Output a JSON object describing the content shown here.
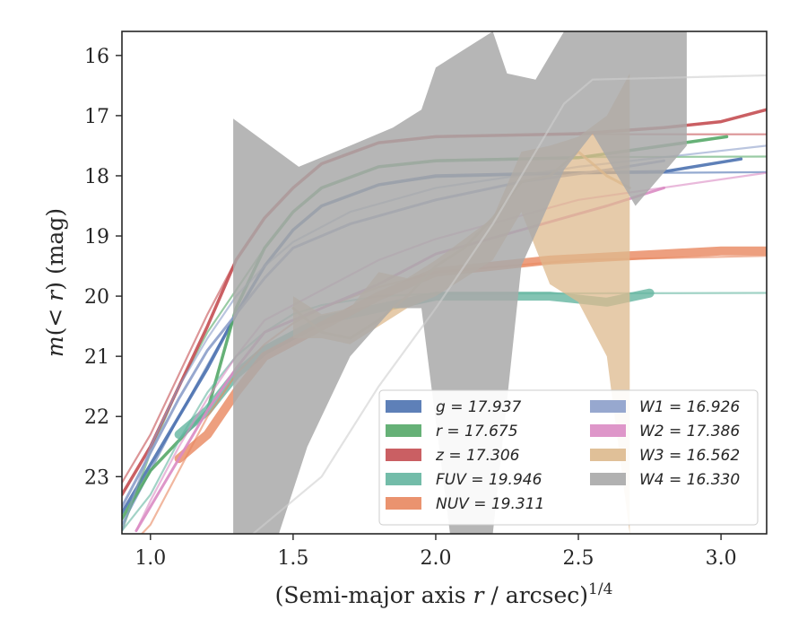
{
  "chart_data": {
    "type": "line",
    "xlabel": "(Semi-major axis r / arcsec)^1/4",
    "ylabel": "m(< r) (mag)",
    "xlim": [
      0.9,
      3.16
    ],
    "ylim": [
      23.95,
      15.6
    ],
    "y_inverted": true,
    "grid": false,
    "legend_position": "lower-right",
    "x_ticks": [
      "1.0",
      "1.5",
      "2.0",
      "2.5",
      "3.0"
    ],
    "x_tick_values": [
      1.0,
      1.5,
      2.0,
      2.5,
      3.0
    ],
    "y_ticks": [
      "16",
      "17",
      "18",
      "19",
      "20",
      "21",
      "22",
      "23"
    ],
    "y_tick_values": [
      16,
      17,
      18,
      19,
      20,
      21,
      22,
      23
    ],
    "series": [
      {
        "name": "g = 17.937",
        "band": "g",
        "mag": "17.937",
        "color": "#4C72B0",
        "data": [
          [
            0.9,
            23.6
          ],
          [
            1.0,
            22.8
          ],
          [
            1.1,
            22.0
          ],
          [
            1.2,
            21.2
          ],
          [
            1.3,
            20.3
          ],
          [
            1.4,
            19.5
          ],
          [
            1.5,
            18.9
          ],
          [
            1.6,
            18.5
          ],
          [
            1.8,
            18.15
          ],
          [
            2.0,
            18.0
          ],
          [
            2.5,
            17.95
          ],
          [
            2.8,
            17.93
          ],
          [
            3.07,
            17.72
          ]
        ],
        "model": [
          [
            0.9,
            23.8
          ],
          [
            1.0,
            22.9
          ],
          [
            1.1,
            22.0
          ],
          [
            1.2,
            21.15
          ],
          [
            1.3,
            20.3
          ],
          [
            1.4,
            19.5
          ],
          [
            1.5,
            18.9
          ],
          [
            1.6,
            18.5
          ],
          [
            1.8,
            18.15
          ],
          [
            2.0,
            18.02
          ],
          [
            2.5,
            17.96
          ],
          [
            3.16,
            17.94
          ]
        ]
      },
      {
        "name": "r = 17.675",
        "band": "r",
        "mag": "17.675",
        "color": "#55A868",
        "data": [
          [
            0.9,
            23.7
          ],
          [
            1.0,
            22.9
          ],
          [
            1.1,
            22.4
          ],
          [
            1.2,
            21.9
          ],
          [
            1.3,
            20.2
          ],
          [
            1.4,
            19.2
          ],
          [
            1.5,
            18.6
          ],
          [
            1.6,
            18.2
          ],
          [
            1.8,
            17.85
          ],
          [
            2.0,
            17.75
          ],
          [
            2.5,
            17.7
          ],
          [
            2.8,
            17.5
          ],
          [
            3.02,
            17.35
          ]
        ],
        "model": [
          [
            0.9,
            23.9
          ],
          [
            1.0,
            22.6
          ],
          [
            1.1,
            21.5
          ],
          [
            1.2,
            20.6
          ],
          [
            1.3,
            19.9
          ],
          [
            1.4,
            19.2
          ],
          [
            1.5,
            18.6
          ],
          [
            1.6,
            18.2
          ],
          [
            1.8,
            17.85
          ],
          [
            2.0,
            17.74
          ],
          [
            2.5,
            17.69
          ],
          [
            3.16,
            17.68
          ]
        ]
      },
      {
        "name": "z = 17.306",
        "band": "z",
        "mag": "17.306",
        "color": "#C44E52",
        "data": [
          [
            0.9,
            23.3
          ],
          [
            1.0,
            22.5
          ],
          [
            1.1,
            21.5
          ],
          [
            1.2,
            20.5
          ],
          [
            1.3,
            19.4
          ],
          [
            1.4,
            18.7
          ],
          [
            1.5,
            18.2
          ],
          [
            1.6,
            17.8
          ],
          [
            1.8,
            17.45
          ],
          [
            2.0,
            17.35
          ],
          [
            2.5,
            17.3
          ],
          [
            2.8,
            17.2
          ],
          [
            3.0,
            17.1
          ],
          [
            3.16,
            16.9
          ]
        ],
        "model": [
          [
            0.9,
            23.1
          ],
          [
            1.0,
            22.3
          ],
          [
            1.1,
            21.3
          ],
          [
            1.2,
            20.3
          ],
          [
            1.3,
            19.4
          ],
          [
            1.4,
            18.7
          ],
          [
            1.5,
            18.2
          ],
          [
            1.6,
            17.8
          ],
          [
            1.8,
            17.45
          ],
          [
            2.0,
            17.34
          ],
          [
            2.5,
            17.31
          ],
          [
            3.16,
            17.31
          ]
        ]
      },
      {
        "name": "FUV = 19.946",
        "band": "FUV",
        "mag": "19.946",
        "color": "#64B5A0",
        "data": [
          [
            1.1,
            22.3
          ],
          [
            1.2,
            21.9
          ],
          [
            1.3,
            21.3
          ],
          [
            1.4,
            20.9
          ],
          [
            1.6,
            20.4
          ],
          [
            1.8,
            20.2
          ],
          [
            2.0,
            20.0
          ],
          [
            2.2,
            20.0
          ],
          [
            2.4,
            20.0
          ],
          [
            2.6,
            20.1
          ],
          [
            2.75,
            19.95
          ]
        ],
        "model": [
          [
            0.9,
            23.9
          ],
          [
            1.0,
            23.3
          ],
          [
            1.1,
            22.4
          ],
          [
            1.2,
            21.6
          ],
          [
            1.3,
            21.0
          ],
          [
            1.4,
            20.6
          ],
          [
            1.5,
            20.3
          ],
          [
            1.6,
            20.15
          ],
          [
            1.8,
            20.0
          ],
          [
            2.0,
            19.96
          ],
          [
            3.16,
            19.946
          ]
        ]
      },
      {
        "name": "NUV = 19.311",
        "band": "NUV",
        "mag": "19.311",
        "color": "#E8875F",
        "data": [
          [
            1.1,
            22.7
          ],
          [
            1.2,
            22.3
          ],
          [
            1.3,
            21.6
          ],
          [
            1.4,
            21.0
          ],
          [
            1.6,
            20.5
          ],
          [
            1.8,
            20.0
          ],
          [
            2.0,
            19.6
          ],
          [
            2.2,
            19.5
          ],
          [
            2.4,
            19.4
          ],
          [
            2.6,
            19.35
          ],
          [
            2.8,
            19.3
          ],
          [
            3.0,
            19.25
          ],
          [
            3.16,
            19.25
          ]
        ],
        "model": [
          [
            0.9,
            24.3
          ],
          [
            1.0,
            23.8
          ],
          [
            1.1,
            22.9
          ],
          [
            1.2,
            22.0
          ],
          [
            1.3,
            21.3
          ],
          [
            1.4,
            20.8
          ],
          [
            1.5,
            20.45
          ],
          [
            1.6,
            20.2
          ],
          [
            1.8,
            19.85
          ],
          [
            2.0,
            19.6
          ],
          [
            2.5,
            19.4
          ],
          [
            3.16,
            19.33
          ]
        ]
      },
      {
        "name": "W1 = 16.926",
        "band": "W1",
        "mag": "16.926",
        "color": "#8C9FCA",
        "data": [
          [
            0.9,
            23.5
          ],
          [
            1.0,
            22.6
          ],
          [
            1.1,
            21.7
          ],
          [
            1.2,
            20.9
          ],
          [
            1.3,
            20.3
          ],
          [
            1.4,
            19.7
          ],
          [
            1.5,
            19.2
          ],
          [
            1.7,
            18.8
          ],
          [
            2.0,
            18.4
          ],
          [
            2.3,
            18.1
          ],
          [
            2.6,
            17.9
          ],
          [
            2.8,
            17.75
          ]
        ],
        "model": [
          [
            0.9,
            23.9
          ],
          [
            1.0,
            22.5
          ],
          [
            1.1,
            21.5
          ],
          [
            1.2,
            20.7
          ],
          [
            1.3,
            20.0
          ],
          [
            1.4,
            19.5
          ],
          [
            1.5,
            19.1
          ],
          [
            1.7,
            18.6
          ],
          [
            2.0,
            18.2
          ],
          [
            2.5,
            17.85
          ],
          [
            3.16,
            17.5
          ]
        ]
      },
      {
        "name": "W2 = 17.386",
        "band": "W2",
        "mag": "17.386",
        "color": "#DA8BC3",
        "data": [
          [
            0.95,
            23.9
          ],
          [
            1.0,
            23.5
          ],
          [
            1.1,
            22.7
          ],
          [
            1.2,
            21.9
          ],
          [
            1.3,
            21.2
          ],
          [
            1.4,
            20.6
          ],
          [
            1.6,
            20.2
          ],
          [
            1.8,
            19.8
          ],
          [
            2.0,
            19.3
          ],
          [
            2.3,
            18.9
          ],
          [
            2.6,
            18.5
          ],
          [
            2.8,
            18.2
          ]
        ],
        "model": [
          [
            0.95,
            23.9
          ],
          [
            1.0,
            23.4
          ],
          [
            1.1,
            22.5
          ],
          [
            1.2,
            21.7
          ],
          [
            1.3,
            21.0
          ],
          [
            1.4,
            20.4
          ],
          [
            1.6,
            19.9
          ],
          [
            1.8,
            19.4
          ],
          [
            2.0,
            19.05
          ],
          [
            2.5,
            18.4
          ],
          [
            3.16,
            17.95
          ]
        ]
      },
      {
        "name": "W3 = 16.562",
        "band": "W3",
        "mag": "16.562",
        "color": "#DDB98D",
        "data": [
          [
            1.5,
            20.2
          ],
          [
            1.6,
            20.6
          ],
          [
            1.7,
            20.7
          ],
          [
            1.8,
            20.4
          ],
          [
            1.9,
            20.0
          ],
          [
            2.0,
            19.5
          ],
          [
            2.1,
            19.2
          ],
          [
            2.2,
            18.7
          ],
          [
            2.3,
            18.1
          ],
          [
            2.4,
            18.0
          ],
          [
            2.5,
            17.6
          ],
          [
            2.6,
            18.0
          ],
          [
            2.68,
            18.2
          ]
        ],
        "upper": [
          [
            1.5,
            20.0
          ],
          [
            1.6,
            20.3
          ],
          [
            1.7,
            20.2
          ],
          [
            1.8,
            19.6
          ],
          [
            1.9,
            19.7
          ],
          [
            2.0,
            19.4
          ],
          [
            2.2,
            18.7
          ],
          [
            2.3,
            17.6
          ],
          [
            2.4,
            17.5
          ],
          [
            2.5,
            17.35
          ],
          [
            2.6,
            17.0
          ],
          [
            2.68,
            16.3
          ]
        ],
        "lower": [
          [
            1.5,
            20.7
          ],
          [
            1.6,
            20.7
          ],
          [
            1.7,
            20.8
          ],
          [
            1.8,
            20.5
          ],
          [
            1.9,
            20.2
          ],
          [
            2.0,
            20.0
          ],
          [
            2.2,
            19.4
          ],
          [
            2.3,
            18.6
          ],
          [
            2.4,
            19.8
          ],
          [
            2.5,
            20.1
          ],
          [
            2.6,
            21.0
          ],
          [
            2.68,
            23.95
          ]
        ]
      },
      {
        "name": "W4 = 16.330",
        "band": "W4",
        "mag": "16.330",
        "color": "#A9A9A9",
        "upper": [
          [
            1.29,
            17.05
          ],
          [
            1.52,
            17.85
          ],
          [
            1.7,
            17.5
          ],
          [
            1.85,
            17.2
          ],
          [
            1.95,
            16.9
          ],
          [
            2.0,
            16.2
          ],
          [
            2.2,
            15.6
          ],
          [
            2.25,
            16.3
          ],
          [
            2.35,
            16.4
          ],
          [
            2.45,
            15.6
          ],
          [
            2.7,
            15.6
          ],
          [
            2.88,
            15.6
          ]
        ],
        "lower": [
          [
            1.29,
            23.95
          ],
          [
            1.45,
            23.95
          ],
          [
            1.55,
            22.5
          ],
          [
            1.7,
            21.0
          ],
          [
            1.85,
            20.2
          ],
          [
            1.95,
            20.2
          ],
          [
            2.05,
            23.95
          ],
          [
            2.2,
            23.95
          ],
          [
            2.3,
            19.5
          ],
          [
            2.45,
            17.9
          ],
          [
            2.55,
            17.3
          ],
          [
            2.7,
            18.5
          ],
          [
            2.88,
            17.5
          ]
        ],
        "model": [
          [
            1.36,
            23.95
          ],
          [
            1.6,
            23.0
          ],
          [
            1.8,
            21.5
          ],
          [
            2.0,
            20.2
          ],
          [
            2.2,
            18.8
          ],
          [
            2.35,
            17.6
          ],
          [
            2.45,
            16.8
          ],
          [
            2.55,
            16.4
          ],
          [
            3.16,
            16.33
          ]
        ]
      }
    ],
    "legend": {
      "left": [
        {
          "label": "g = 17.937",
          "color": "#4C72B0"
        },
        {
          "label": "r = 17.675",
          "color": "#55A868"
        },
        {
          "label": "z = 17.306",
          "color": "#C44E52"
        },
        {
          "label": "FUV = 19.946",
          "color": "#64B5A0"
        },
        {
          "label": "NUV = 19.311",
          "color": "#E8875F"
        }
      ],
      "right": [
        {
          "label": "W1 = 16.926",
          "color": "#8C9FCA"
        },
        {
          "label": "W2 = 17.386",
          "color": "#DA8BC3"
        },
        {
          "label": "W3 = 16.562",
          "color": "#DDB98D"
        },
        {
          "label": "W4 = 16.330",
          "color": "#A9A9A9"
        }
      ]
    }
  }
}
